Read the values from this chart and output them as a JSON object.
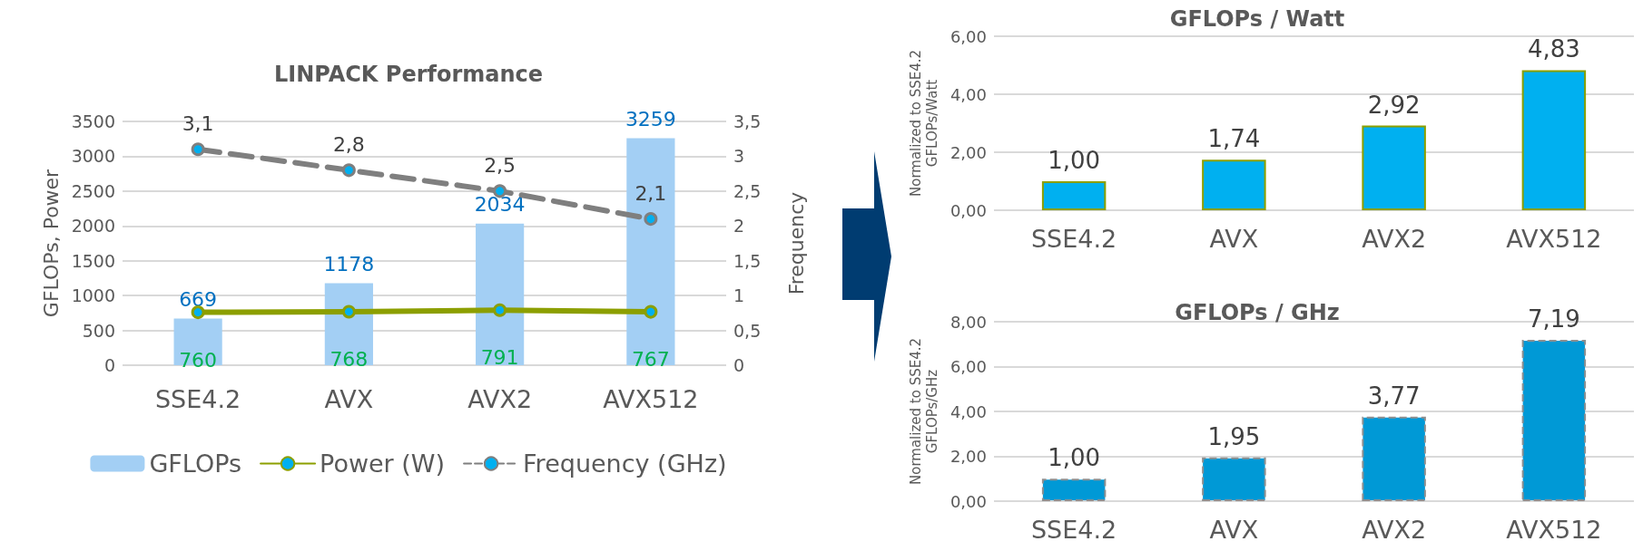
{
  "chart_data": [
    {
      "type": "bar",
      "title": "LINPACK Performance",
      "categories": [
        "SSE4.2",
        "AVX",
        "AVX2",
        "AVX512"
      ],
      "ylabel": "GFLOPs, Power",
      "y2label": "Frequency",
      "ylim": [
        0,
        3500
      ],
      "yticks": [
        0,
        500,
        1000,
        1500,
        2000,
        2500,
        3000,
        3500
      ],
      "y2lim": [
        0,
        3.5
      ],
      "y2ticks": [
        0,
        {
          "value": 0.5,
          "label": "0,5"
        },
        1,
        {
          "value": 1.5,
          "label": "1,5"
        },
        2,
        {
          "value": 2.5,
          "label": "2,5"
        },
        3,
        {
          "value": 3.5,
          "label": "3,5"
        }
      ],
      "series": [
        {
          "name": "GFLOPs",
          "type": "bar",
          "color": "#a3cff4",
          "values": [
            669,
            1178,
            2034,
            3259
          ],
          "value_labels": [
            "669",
            "1178",
            "2034",
            "3259"
          ]
        },
        {
          "name": "Power (W)",
          "type": "line",
          "color": "#8c9f00",
          "line_style": "solid",
          "values": [
            760,
            768,
            791,
            767
          ],
          "value_labels": [
            "760",
            "768",
            "791",
            "767"
          ]
        },
        {
          "name": "Frequency (GHz)",
          "type": "line",
          "axis": "y2",
          "color": "#7f7f7f",
          "line_style": "dashed",
          "values": [
            3.1,
            2.8,
            2.5,
            2.1
          ],
          "value_labels": [
            "3,1",
            "2,8",
            "2,5",
            "2,1"
          ]
        }
      ],
      "marker": "circle",
      "grid": "y",
      "legend": "bottom"
    },
    {
      "type": "bar",
      "title": "GFLOPs / Watt",
      "categories": [
        "SSE4.2",
        "AVX",
        "AVX2",
        "AVX512"
      ],
      "ylabel": "Normalized to SSE4.2 GFLOPs/Watt",
      "ylim": [
        0,
        6
      ],
      "yticks": [
        {
          "value": 0,
          "label": "0,00"
        },
        {
          "value": 2,
          "label": "2,00"
        },
        {
          "value": 4,
          "label": "4,00"
        },
        {
          "value": 6,
          "label": "6,00"
        }
      ],
      "series": [
        {
          "color": "#00b0f0",
          "values": [
            1.0,
            1.74,
            2.92,
            4.83
          ],
          "value_labels": [
            "1,00",
            "1,74",
            "2,92",
            "4,83"
          ]
        }
      ],
      "grid": "y"
    },
    {
      "type": "bar",
      "title": "GFLOPs / GHz",
      "categories": [
        "SSE4.2",
        "AVX",
        "AVX2",
        "AVX512"
      ],
      "ylabel": "Normalized to SSE4.2 GFLOPs/GHz",
      "ylim": [
        0,
        8
      ],
      "yticks": [
        {
          "value": 0,
          "label": "0,00"
        },
        {
          "value": 2,
          "label": "2,00"
        },
        {
          "value": 4,
          "label": "4,00"
        },
        {
          "value": 6,
          "label": "6,00"
        },
        {
          "value": 8,
          "label": "8,00"
        }
      ],
      "series": [
        {
          "color": "#0099d6",
          "values": [
            1.0,
            1.95,
            3.77,
            7.19
          ],
          "value_labels": [
            "1,00",
            "1,95",
            "3,77",
            "7,19"
          ]
        }
      ],
      "grid": "y"
    }
  ]
}
